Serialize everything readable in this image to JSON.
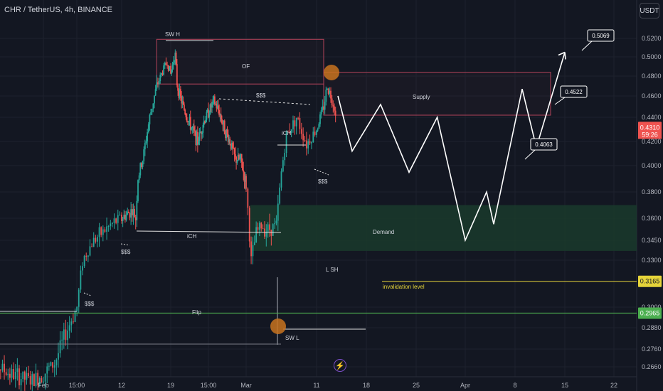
{
  "header": {
    "title": "CHR / TetherUS, 4h, BINANCE",
    "currency": "USDT",
    "lightning_icon": "lightning-icon"
  },
  "colors": {
    "background": "#131722",
    "grid": "#1e222d",
    "candle_up": "#26a69a",
    "candle_down": "#ef5350",
    "supply_border": "#b2435a",
    "demand_fill": "#1a3a2c",
    "invalidation": "#e5d43a",
    "flip_line": "#4caf50",
    "annotation_circle": "#c8731e"
  },
  "chart_data": {
    "type": "candlestick",
    "symbol": "CHR / TetherUS",
    "timeframe": "4h",
    "exchange": "BINANCE",
    "y_ticks": [
      "0.5200",
      "0.5000",
      "0.4800",
      "0.4600",
      "0.4400",
      "0.4200",
      "0.4000",
      "0.3800",
      "0.3600",
      "0.3450",
      "0.3300",
      "0.3000",
      "0.2880",
      "0.2760",
      "0.2660"
    ],
    "x_ticks": [
      "Feb",
      "15:00",
      "12",
      "19",
      "15:00",
      "Mar",
      "11",
      "18",
      "25",
      "Apr",
      "8",
      "15",
      "22"
    ],
    "current_price": "0.4310",
    "countdown": "59:26",
    "flip_price": "0.2965",
    "invalidation_price": "0.3165",
    "targets": [
      "0.4063",
      "0.4522",
      "0.5069"
    ],
    "labels": {
      "sw_h": "SW H",
      "of": "OF",
      "liq_top": "$$$",
      "ich_top": "iCH",
      "liq_right": "$$$",
      "supply": "Supply",
      "ich_left": "iCH",
      "liq_mid": "$$$",
      "demand": "Demand",
      "l_sh": "L SH",
      "invalidation": "invalidation level",
      "liq_low": "$$$",
      "flip": "Flip",
      "sw_l": "SW L"
    },
    "projection_path": [
      [
        "Mar 14",
        0.46
      ],
      [
        "Mar 16",
        0.412
      ],
      [
        "Mar 20",
        0.452
      ],
      [
        "Mar 24",
        0.395
      ],
      [
        "Mar 28",
        0.44
      ],
      [
        "Apr 1",
        0.345
      ],
      [
        "Apr 4",
        0.38
      ],
      [
        "Apr 5",
        0.356
      ],
      [
        "Apr 9",
        0.467
      ],
      [
        "Apr 11",
        0.415
      ],
      [
        "Apr 15",
        0.505
      ]
    ],
    "zones": {
      "supply": [
        0.442,
        0.484
      ],
      "order_block_top": [
        0.472,
        0.519
      ],
      "demand": [
        0.337,
        0.37
      ]
    },
    "legend": "none",
    "grid": true
  }
}
